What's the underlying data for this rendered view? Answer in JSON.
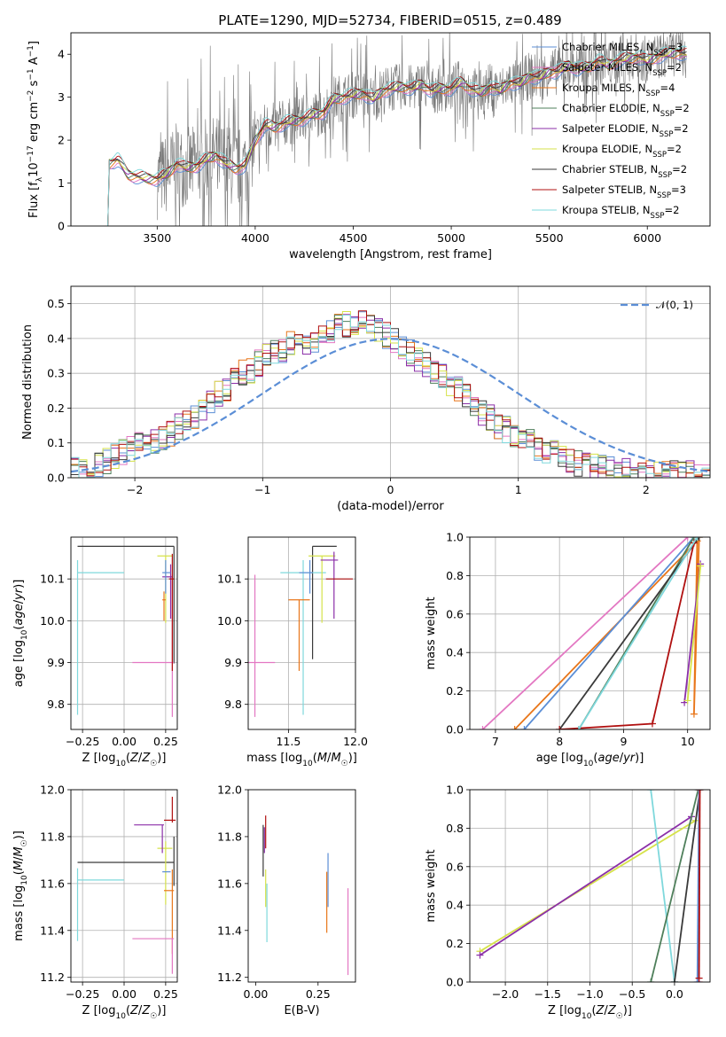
{
  "figure": {
    "title": "PLATE=1290, MJD=52734, FIBERID=0515, z=0.489"
  },
  "colors": {
    "chabrier_miles": "#5b8ed6",
    "salpeter_miles": "#e377c2",
    "kroupa_miles": "#e8761a",
    "chabrier_elodie": "#4f7f5b",
    "salpeter_elodie": "#8b2fa8",
    "kroupa_elodie": "#d6e24a",
    "chabrier_stelib": "#3a3a3a",
    "salpeter_stelib": "#b01010",
    "kroupa_stelib": "#7fd8dc",
    "data_gray": "#777777",
    "normal_curve": "#5b8ed6",
    "grid": "#b0b0b0"
  },
  "chart_data": [
    {
      "id": "spectrum",
      "type": "line",
      "xlabel": "wavelength [Angstrom, rest frame]",
      "ylabel": "Flux [f_λ 10^-17 erg cm^-2 s^-1 A^-1]",
      "xlim": [
        3060,
        6320
      ],
      "ylim": [
        0,
        4.5
      ],
      "xticks": [
        "3500",
        "4000",
        "4500",
        "5000",
        "5500",
        "6000"
      ],
      "yticks": [
        "0",
        "1",
        "2",
        "3",
        "4"
      ],
      "grid": false,
      "legend_position": "top-right",
      "legend": [
        {
          "name": "Chabrier MILES, N_SSP=3",
          "text": "Chabrier MILES, N",
          "sub": "SSP",
          "suffix": "=3",
          "color_key": "chabrier_miles"
        },
        {
          "name": "Salpeter MILES, N_SSP=2",
          "text": "Salpeter MILES, N",
          "sub": "SSP",
          "suffix": "=2",
          "color_key": "salpeter_miles"
        },
        {
          "name": "Kroupa MILES, N_SSP=4",
          "text": "Kroupa MILES, N",
          "sub": "SSP",
          "suffix": "=4",
          "color_key": "kroupa_miles"
        },
        {
          "name": "Chabrier ELODIE, N_SSP=2",
          "text": "Chabrier ELODIE, N",
          "sub": "SSP",
          "suffix": "=2",
          "color_key": "chabrier_elodie"
        },
        {
          "name": "Salpeter ELODIE, N_SSP=2",
          "text": "Salpeter ELODIE, N",
          "sub": "SSP",
          "suffix": "=2",
          "color_key": "salpeter_elodie"
        },
        {
          "name": "Kroupa ELODIE, N_SSP=2",
          "text": "Kroupa ELODIE, N",
          "sub": "SSP",
          "suffix": "=2",
          "color_key": "kroupa_elodie"
        },
        {
          "name": "Chabrier STELIB, N_SSP=2",
          "text": "Chabrier STELIB, N",
          "sub": "SSP",
          "suffix": "=2",
          "color_key": "chabrier_stelib"
        },
        {
          "name": "Salpeter STELIB, N_SSP=3",
          "text": "Salpeter STELIB, N",
          "sub": "SSP",
          "suffix": "=3",
          "color_key": "salpeter_stelib"
        },
        {
          "name": "Kroupa STELIB, N_SSP=2",
          "text": "Kroupa STELIB, N",
          "sub": "SSP",
          "suffix": "=2",
          "color_key": "kroupa_stelib"
        }
      ],
      "continuum_model": {
        "wavelength": [
          3240,
          3250,
          3300,
          3350,
          3400,
          3450,
          3500,
          3550,
          3600,
          3650,
          3700,
          3750,
          3800,
          3850,
          3900,
          3950,
          4000,
          4050,
          4100,
          4150,
          4200,
          4250,
          4300,
          4350,
          4400,
          4450,
          4500,
          4550,
          4600,
          4650,
          4700,
          4750,
          4800,
          4850,
          4900,
          4950,
          5000,
          5050,
          5100,
          5150,
          5200,
          5250,
          5300,
          5350,
          5400,
          5450,
          5500,
          5550,
          5600,
          5650,
          5700,
          5750,
          5800,
          5850,
          5900,
          5950,
          6000,
          6050,
          6100,
          6150,
          6200
        ],
        "flux": [
          0.0,
          1.45,
          1.55,
          1.2,
          1.15,
          1.1,
          1.1,
          1.2,
          1.45,
          1.35,
          1.4,
          1.55,
          1.65,
          1.45,
          1.35,
          1.4,
          2.0,
          2.35,
          2.3,
          2.4,
          2.45,
          2.5,
          2.6,
          2.65,
          2.95,
          3.0,
          3.05,
          3.1,
          2.95,
          3.15,
          3.2,
          3.25,
          3.2,
          3.3,
          3.15,
          3.2,
          3.2,
          3.35,
          3.2,
          3.1,
          3.25,
          3.15,
          3.35,
          3.3,
          3.5,
          3.45,
          3.6,
          3.6,
          3.75,
          3.65,
          3.7,
          3.85,
          3.75,
          3.85,
          3.9,
          3.95,
          3.85,
          3.95,
          4.0,
          4.05,
          4.0
        ]
      },
      "data_flux_range": {
        "xmin": 3500,
        "xmax": 6200,
        "note_value": "noisy observed spectrum spanning roughly 0 to 4.5 flux units"
      }
    },
    {
      "id": "residuals",
      "type": "line",
      "xlabel": "(data-model)/error",
      "ylabel": "Normed distribution",
      "xlim": [
        -2.5,
        2.5
      ],
      "ylim": [
        0,
        0.55
      ],
      "xticks": [
        "−2",
        "−1",
        "0",
        "1",
        "2"
      ],
      "yticks": [
        "0.0",
        "0.1",
        "0.2",
        "0.3",
        "0.4",
        "0.5"
      ],
      "grid": true,
      "legend_position": "top-right",
      "legend": [
        {
          "name": "N(0,1)",
          "text": "𝒩(0, 1)",
          "color_key": "normal_curve"
        }
      ],
      "bin_width": 0.1,
      "bin_start": -2.5,
      "histogram_base": [
        0.02,
        0.02,
        0.03,
        0.04,
        0.05,
        0.06,
        0.07,
        0.08,
        0.09,
        0.1,
        0.11,
        0.12,
        0.13,
        0.15,
        0.16,
        0.18,
        0.2,
        0.22,
        0.24,
        0.26,
        0.28,
        0.3,
        0.31,
        0.33,
        0.35,
        0.36,
        0.37,
        0.38,
        0.38,
        0.39,
        0.4,
        0.41,
        0.42,
        0.43,
        0.44,
        0.45,
        0.44,
        0.43,
        0.42,
        0.41,
        0.4,
        0.38,
        0.36,
        0.34,
        0.33,
        0.31,
        0.29,
        0.27,
        0.25,
        0.23,
        0.21,
        0.19,
        0.17,
        0.15,
        0.14,
        0.12,
        0.11,
        0.1,
        0.09,
        0.08,
        0.07,
        0.06,
        0.05,
        0.04,
        0.04,
        0.03,
        0.03,
        0.02,
        0.02,
        0.02,
        0.02,
        0.01,
        0.01,
        0.01,
        0.01,
        0.01,
        0.01,
        0.01,
        0.01,
        0.01
      ]
    },
    {
      "id": "age_vs_Z",
      "type": "scatter",
      "xlabel": "Z [log10(Z/Z☉)]",
      "ylabel": "age  [log10(age/yr)]",
      "xlim": [
        -0.32,
        0.32
      ],
      "ylim": [
        9.74,
        10.2
      ],
      "xticks": [
        "−0.25",
        "0.00",
        "0.25"
      ],
      "yticks": [
        "9.8",
        "9.9",
        "10.0",
        "10.1"
      ],
      "grid": true,
      "points": [
        {
          "series": "chabrier_stelib",
          "x": 0.3,
          "y": 10.178,
          "xerr_lo": 0.58,
          "xerr_hi": 0.0,
          "yerr_lo": 0.28,
          "yerr_hi": 0.0
        },
        {
          "series": "kroupa_stelib",
          "x": -0.28,
          "y": 10.115,
          "xerr_lo": 0.0,
          "xerr_hi": 0.28,
          "yerr_lo": 0.34,
          "yerr_hi": 0.03
        },
        {
          "series": "kroupa_elodie",
          "x": 0.25,
          "y": 10.155,
          "xerr_lo": 0.05,
          "xerr_hi": 0.04,
          "yerr_lo": 0.16,
          "yerr_hi": 0.0
        },
        {
          "series": "salpeter_elodie",
          "x": 0.28,
          "y": 10.105,
          "xerr_lo": 0.05,
          "xerr_hi": 0.01,
          "yerr_lo": 0.1,
          "yerr_hi": 0.03
        },
        {
          "series": "chabrier_miles",
          "x": 0.25,
          "y": 10.115,
          "xerr_lo": 0.02,
          "xerr_hi": 0.03,
          "yerr_lo": 0.05,
          "yerr_hi": 0.03
        },
        {
          "series": "kroupa_miles",
          "x": 0.24,
          "y": 10.05,
          "xerr_lo": 0.01,
          "xerr_hi": 0.01,
          "yerr_lo": 0.05,
          "yerr_hi": 0.02
        },
        {
          "series": "salpeter_miles",
          "x": 0.29,
          "y": 9.9,
          "xerr_lo": 0.24,
          "xerr_hi": 0.01,
          "yerr_lo": 0.13,
          "yerr_hi": 0.21
        },
        {
          "series": "salpeter_stelib",
          "x": 0.29,
          "y": 10.1,
          "xerr_lo": 0.02,
          "xerr_hi": 0.01,
          "yerr_lo": 0.22,
          "yerr_hi": 0.06
        }
      ]
    },
    {
      "id": "age_vs_mass",
      "type": "scatter",
      "xlabel": "mass [log10(M/M☉)]",
      "ylabel": "",
      "xlim": [
        11.2,
        12.0
      ],
      "ylim": [
        9.74,
        10.2
      ],
      "xticks": [
        "11.5",
        "12.0"
      ],
      "yticks": [
        "9.8",
        "9.9",
        "10.0",
        "10.1"
      ],
      "grid": true,
      "points": [
        {
          "series": "chabrier_stelib",
          "x": 11.68,
          "y": 10.178,
          "xerr_lo": 0.0,
          "xerr_hi": 0.18,
          "yerr_lo": 0.27,
          "yerr_hi": 0.0
        },
        {
          "series": "kroupa_stelib",
          "x": 11.61,
          "y": 10.115,
          "xerr_lo": 0.17,
          "xerr_hi": 0.17,
          "yerr_lo": 0.34,
          "yerr_hi": 0.03
        },
        {
          "series": "kroupa_elodie",
          "x": 11.75,
          "y": 10.155,
          "xerr_lo": 0.1,
          "xerr_hi": 0.1,
          "yerr_lo": 0.16,
          "yerr_hi": 0.0
        },
        {
          "series": "salpeter_elodie",
          "x": 11.84,
          "y": 10.145,
          "xerr_lo": 0.1,
          "xerr_hi": 0.03,
          "yerr_lo": 0.14,
          "yerr_hi": 0.02
        },
        {
          "series": "chabrier_miles",
          "x": 11.66,
          "y": 10.115,
          "xerr_lo": 0.08,
          "xerr_hi": 0.02,
          "yerr_lo": 0.05,
          "yerr_hi": 0.03
        },
        {
          "series": "kroupa_miles",
          "x": 11.58,
          "y": 10.05,
          "xerr_lo": 0.08,
          "xerr_hi": 0.08,
          "yerr_lo": 0.17,
          "yerr_hi": 0.0
        },
        {
          "series": "salpeter_miles",
          "x": 11.25,
          "y": 9.9,
          "xerr_lo": 0.15,
          "xerr_hi": 0.15,
          "yerr_lo": 0.13,
          "yerr_hi": 0.21
        },
        {
          "series": "salpeter_stelib",
          "x": 11.88,
          "y": 10.1,
          "xerr_lo": 0.1,
          "xerr_hi": 0.1,
          "yerr_lo": 0.0,
          "yerr_hi": 0.0
        }
      ]
    },
    {
      "id": "weight_vs_age",
      "type": "line",
      "xlabel": "age  [log10(age/yr)]",
      "ylabel": "mass weight",
      "xlim": [
        6.6,
        10.35
      ],
      "ylim": [
        0,
        1
      ],
      "xticks": [
        "7",
        "8",
        "9",
        "10"
      ],
      "yticks": [
        "0.0",
        "0.2",
        "0.4",
        "0.6",
        "0.8",
        "1.0"
      ],
      "grid": true,
      "cumulative": [
        {
          "series": "salpeter_miles",
          "ages": [
            6.8,
            10.0
          ],
          "weights": [
            0.0,
            1.0
          ]
        },
        {
          "series": "kroupa_miles",
          "ages": [
            7.3,
            10.15,
            10.1,
            10.18
          ],
          "weights": [
            0.0,
            0.98,
            0.08,
            1.0
          ]
        },
        {
          "series": "chabrier_miles",
          "ages": [
            7.45,
            10.1
          ],
          "weights": [
            0.0,
            1.0
          ]
        },
        {
          "series": "chabrier_elodie",
          "ages": [
            8.3,
            10.1
          ],
          "weights": [
            0.0,
            1.0
          ]
        },
        {
          "series": "chabrier_stelib",
          "ages": [
            8.0,
            10.18
          ],
          "weights": [
            0.0,
            1.0
          ]
        },
        {
          "series": "salpeter_stelib",
          "ages": [
            8.0,
            9.45,
            10.1,
            10.15
          ],
          "weights": [
            0.0,
            0.03,
            0.97,
            1.0
          ]
        },
        {
          "series": "kroupa_stelib",
          "ages": [
            8.3,
            10.15
          ],
          "weights": [
            0.0,
            1.0
          ]
        },
        {
          "series": "salpeter_elodie",
          "ages": [
            9.95,
            10.2
          ],
          "weights": [
            0.14,
            0.86
          ]
        },
        {
          "series": "kroupa_elodie",
          "ages": [
            10.0,
            10.2
          ],
          "weights": [
            0.15,
            0.85
          ]
        }
      ]
    },
    {
      "id": "mass_vs_Z",
      "type": "scatter",
      "xlabel": "Z [log10(Z/Z☉)]",
      "ylabel": "mass [log10(M/M☉)]",
      "xlim": [
        -0.32,
        0.32
      ],
      "ylim": [
        11.18,
        12.0
      ],
      "xticks": [
        "−0.25",
        "0.00",
        "0.25"
      ],
      "yticks": [
        "11.2",
        "11.4",
        "11.6",
        "11.8",
        "12.0"
      ],
      "grid": true,
      "points": [
        {
          "series": "chabrier_stelib",
          "x": 0.3,
          "y": 11.69,
          "xerr_lo": 0.58,
          "xerr_hi": 0.0,
          "yerr_lo": 0.1,
          "yerr_hi": 0.11
        },
        {
          "series": "kroupa_stelib",
          "x": -0.28,
          "y": 11.615,
          "xerr_lo": 0.0,
          "xerr_hi": 0.28,
          "yerr_lo": 0.26,
          "yerr_hi": 0.05
        },
        {
          "series": "kroupa_elodie",
          "x": 0.25,
          "y": 11.75,
          "xerr_lo": 0.05,
          "xerr_hi": 0.04,
          "yerr_lo": 0.24,
          "yerr_hi": 0.03
        },
        {
          "series": "salpeter_elodie",
          "x": 0.23,
          "y": 11.85,
          "xerr_lo": 0.17,
          "xerr_hi": 0.01,
          "yerr_lo": 0.12,
          "yerr_hi": 0.0
        },
        {
          "series": "chabrier_miles",
          "x": 0.25,
          "y": 11.65,
          "xerr_lo": 0.02,
          "xerr_hi": 0.03,
          "yerr_lo": 0.0,
          "yerr_hi": 0.0
        },
        {
          "series": "kroupa_miles",
          "x": 0.29,
          "y": 11.57,
          "xerr_lo": 0.05,
          "xerr_hi": 0.01,
          "yerr_lo": 0.27,
          "yerr_hi": 0.09
        },
        {
          "series": "salpeter_miles",
          "x": 0.29,
          "y": 11.365,
          "xerr_lo": 0.24,
          "xerr_hi": 0.01,
          "yerr_lo": 0.15,
          "yerr_hi": 0.0
        },
        {
          "series": "salpeter_stelib",
          "x": 0.29,
          "y": 11.87,
          "xerr_lo": 0.05,
          "xerr_hi": 0.02,
          "yerr_lo": 0.01,
          "yerr_hi": 0.1
        }
      ]
    },
    {
      "id": "mass_vs_ebv",
      "type": "scatter",
      "xlabel": "E(B-V)",
      "ylabel": "",
      "xlim": [
        -0.03,
        0.4
      ],
      "ylim": [
        11.18,
        12.0
      ],
      "xticks": [
        "0.00",
        "0.25"
      ],
      "yticks": [
        "11.2",
        "11.4",
        "11.6",
        "11.8",
        "12.0"
      ],
      "grid": false,
      "points": [
        {
          "series": "chabrier_stelib",
          "x": 0.03,
          "y": 11.75,
          "yerr_lo": 0.12,
          "yerr_hi": 0.1
        },
        {
          "series": "salpeter_stelib",
          "x": 0.04,
          "y": 11.8,
          "yerr_lo": 0.05,
          "yerr_hi": 0.09
        },
        {
          "series": "salpeter_elodie",
          "x": 0.035,
          "y": 11.78,
          "yerr_lo": 0.05,
          "yerr_hi": 0.06
        },
        {
          "series": "kroupa_elodie",
          "x": 0.04,
          "y": 11.6,
          "yerr_lo": 0.1,
          "yerr_hi": 0.06
        },
        {
          "series": "kroupa_stelib",
          "x": 0.045,
          "y": 11.5,
          "yerr_lo": 0.15,
          "yerr_hi": 0.1
        },
        {
          "series": "chabrier_miles",
          "x": 0.29,
          "y": 11.65,
          "yerr_lo": 0.15,
          "yerr_hi": 0.08
        },
        {
          "series": "kroupa_miles",
          "x": 0.285,
          "y": 11.5,
          "yerr_lo": 0.11,
          "yerr_hi": 0.15
        },
        {
          "series": "salpeter_miles",
          "x": 0.37,
          "y": 11.4,
          "yerr_lo": 0.19,
          "yerr_hi": 0.18
        }
      ]
    },
    {
      "id": "weight_vs_Z",
      "type": "line",
      "xlabel": "Z [log10(Z/Z☉)]",
      "ylabel": "mass weight",
      "xlim": [
        -2.42,
        0.42
      ],
      "ylim": [
        0,
        1
      ],
      "xticks": [
        "−2.0",
        "−1.5",
        "−1.0",
        "−0.5",
        "0.0"
      ],
      "yticks": [
        "0.0",
        "0.2",
        "0.4",
        "0.6",
        "0.8",
        "1.0"
      ],
      "grid": true,
      "cumulative": [
        {
          "series": "kroupa_elodie",
          "z": [
            -2.3,
            0.25
          ],
          "weights": [
            0.16,
            0.84
          ]
        },
        {
          "series": "salpeter_elodie",
          "z": [
            -2.3,
            0.2
          ],
          "weights": [
            0.14,
            0.86
          ]
        },
        {
          "series": "kroupa_stelib",
          "z": [
            -0.28,
            0.0
          ],
          "weights": [
            1.0,
            0.0
          ]
        },
        {
          "series": "chabrier_elodie",
          "z": [
            -0.28,
            0.28
          ],
          "weights": [
            0.0,
            1.0
          ]
        },
        {
          "series": "chabrier_stelib",
          "z": [
            0.0,
            0.3
          ],
          "weights": [
            0.0,
            1.0
          ]
        },
        {
          "series": "kroupa_miles",
          "z": [
            0.29,
            0.29
          ],
          "weights": [
            0.0,
            1.0
          ]
        },
        {
          "series": "salpeter_miles",
          "z": [
            0.29,
            0.29
          ],
          "weights": [
            0.0,
            1.0
          ]
        },
        {
          "series": "chabrier_miles",
          "z": [
            0.27,
            0.29
          ],
          "weights": [
            0.0,
            1.0
          ]
        },
        {
          "series": "salpeter_stelib",
          "z": [
            0.29,
            0.3
          ],
          "weights": [
            0.02,
            1.0
          ]
        }
      ]
    }
  ]
}
